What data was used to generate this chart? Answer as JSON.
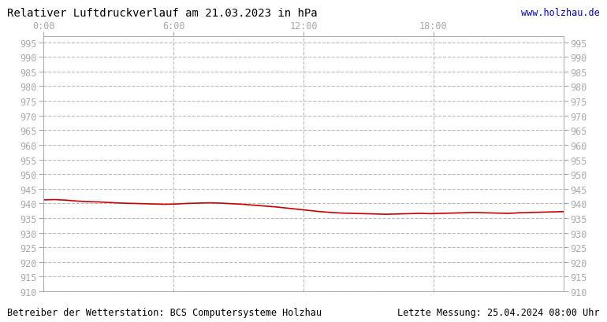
{
  "title": "Relativer Luftdruckverlauf am 21.03.2023 in hPa",
  "url": "www.holzhau.de",
  "footer_left": "Betreiber der Wetterstation: BCS Computersysteme Holzhau",
  "footer_right": "Letzte Messung: 25.04.2024 08:00 Uhr",
  "bg_color": "#ffffff",
  "plot_bg_color": "#ffffff",
  "line_color": "#cc0000",
  "grid_color": "#bbbbbb",
  "tick_color": "#aaaaaa",
  "title_color": "#000000",
  "url_color": "#0000cc",
  "ylim": [
    910,
    997
  ],
  "ytick_step": 5,
  "x_ticks_hours": [
    0,
    6,
    12,
    18
  ],
  "x_ticks_labels": [
    "0:00",
    "6:00",
    "12:00",
    "18:00"
  ],
  "total_hours": 24,
  "pressure_data": [
    941.2,
    941.3,
    941.1,
    940.8,
    940.6,
    940.5,
    940.3,
    940.1,
    940.0,
    939.9,
    939.8,
    939.7,
    939.8,
    940.0,
    940.1,
    940.2,
    940.1,
    939.9,
    939.7,
    939.4,
    939.1,
    938.8,
    938.4,
    938.0,
    937.6,
    937.2,
    936.9,
    936.7,
    936.6,
    936.5,
    936.4,
    936.3,
    936.4,
    936.5,
    936.6,
    936.5,
    936.6,
    936.7,
    936.8,
    936.9,
    936.8,
    936.7,
    936.6,
    936.8,
    936.9,
    937.0,
    937.1,
    937.2
  ],
  "line_width": 1.2,
  "title_fontsize": 10,
  "tick_fontsize": 8.5,
  "footer_fontsize": 8.5
}
